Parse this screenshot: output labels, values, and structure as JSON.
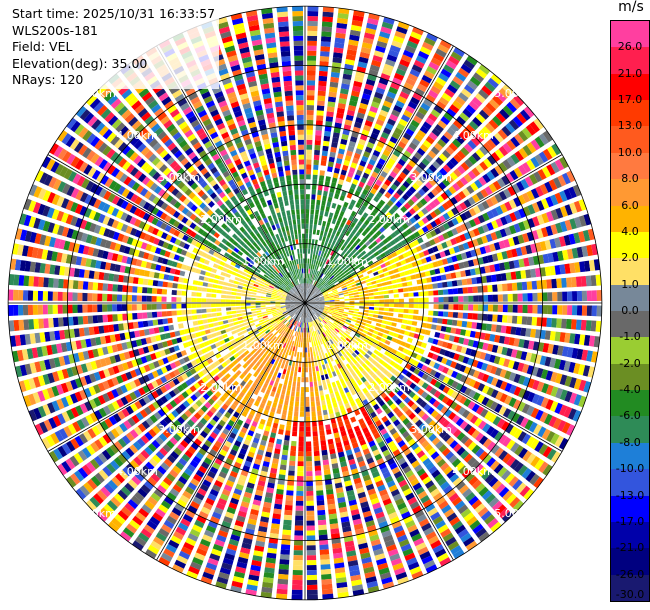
{
  "info": {
    "start_time": "Start time: 2025/10/31 16:33:57",
    "instrument": "WLS200s-181",
    "field": "Field: VEL",
    "elevation": "Elevation(deg): 35.00",
    "nrays": "NRays: 120"
  },
  "colorbar": {
    "unit": "m/s",
    "ticks": [
      "26.0",
      "21.0",
      "17.0",
      "13.0",
      "10.0",
      "8.0",
      "6.0",
      "4.0",
      "2.0",
      "1.0",
      "0.0",
      "-1.0",
      "-2.0",
      "-4.0",
      "-6.0",
      "-8.0",
      "-10.0",
      "-13.0",
      "-17.0",
      "-21.0",
      "-26.0",
      "-30.0"
    ],
    "colors": [
      "#ff3fa0",
      "#ff1f4f",
      "#ff0000",
      "#ff3a00",
      "#ff5a1e",
      "#ff7a40",
      "#ff9933",
      "#ffb300",
      "#ffff00",
      "#ffe066",
      "#778899",
      "#696969",
      "#9acd32",
      "#6b8e23",
      "#228b22",
      "#2e8b57",
      "#1e7fd8",
      "#3355dd",
      "#0000ff",
      "#0000aa",
      "#000080",
      "#191970"
    ]
  },
  "range_rings": {
    "labels": [
      "1.00km",
      "2.00km",
      "3.00km",
      "4.00km",
      "5.00km"
    ]
  },
  "chart_data": {
    "type": "ppi",
    "field": "VEL",
    "units": "m/s",
    "nrays": 120,
    "elevation_deg": 35.0,
    "max_range_km": 5.0,
    "ring_ranges_km": [
      1.0,
      2.0,
      3.0,
      4.0,
      5.0
    ],
    "color_levels": [
      -30.0,
      -26.0,
      -21.0,
      -17.0,
      -13.0,
      -10.0,
      -8.0,
      -6.0,
      -4.0,
      -2.0,
      -1.0,
      0.0,
      1.0,
      2.0,
      4.0,
      6.0,
      8.0,
      10.0,
      13.0,
      17.0,
      21.0,
      26.0
    ],
    "regions": [
      {
        "azimuth_deg": [
          300,
          60
        ],
        "range_km": [
          0.3,
          2.2
        ],
        "velocity_ms": -6.0
      },
      {
        "azimuth_deg": [
          60,
          120
        ],
        "range_km": [
          0.3,
          2.2
        ],
        "velocity_ms": 4.0
      },
      {
        "azimuth_deg": [
          120,
          170
        ],
        "range_km": [
          0.3,
          2.0
        ],
        "velocity_ms": 2.0
      },
      {
        "azimuth_deg": [
          170,
          230
        ],
        "range_km": [
          0.5,
          2.2
        ],
        "velocity_ms": 6.0
      },
      {
        "azimuth_deg": [
          150,
          185
        ],
        "range_km": [
          2.0,
          3.0
        ],
        "velocity_ms": 17.0
      },
      {
        "azimuth_deg": [
          230,
          300
        ],
        "range_km": [
          0.3,
          2.2
        ],
        "velocity_ms": 2.0
      },
      {
        "azimuth_deg": [
          0,
          360
        ],
        "range_km": [
          2.6,
          5.0
        ],
        "velocity_ms": "noise"
      }
    ]
  }
}
